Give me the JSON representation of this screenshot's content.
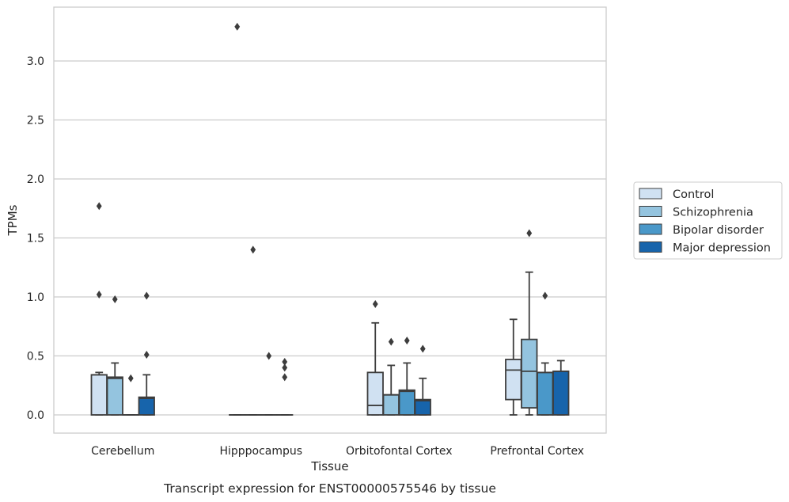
{
  "chart_data": {
    "type": "box",
    "title": "",
    "caption": "Transcript expression for ENST00000575546 by tissue",
    "xlabel": "Tissue",
    "ylabel": "TPMs",
    "ylim": [
      -0.16,
      3.45
    ],
    "yticks": [
      0.0,
      0.5,
      1.0,
      1.5,
      2.0,
      2.5,
      3.0
    ],
    "ytick_labels": [
      "0.0",
      "0.5",
      "1.0",
      "1.5",
      "2.0",
      "2.5",
      "3.0"
    ],
    "grid": "horizontal",
    "legend_placement": "right",
    "categories": [
      "Cerebellum",
      "Hipppocampus",
      "Orbitofontal Cortex",
      "Prefrontal Cortex"
    ],
    "series": [
      {
        "name": "Control",
        "color": "#d0e1f2",
        "boxes": [
          {
            "whislo": 0.0,
            "q1": 0.0,
            "med": 0.34,
            "q3": 0.34,
            "whishi": 0.36,
            "fliers": [
              1.77,
              1.02
            ]
          },
          {
            "whislo": 0.0,
            "q1": 0.0,
            "med": 0.0,
            "q3": 0.0,
            "whishi": 0.0,
            "fliers": [
              3.29
            ]
          },
          {
            "whislo": 0.0,
            "q1": 0.0,
            "med": 0.08,
            "q3": 0.36,
            "whishi": 0.78,
            "fliers": [
              0.94
            ]
          },
          {
            "whislo": 0.0,
            "q1": 0.13,
            "med": 0.38,
            "q3": 0.47,
            "whishi": 0.81,
            "fliers": []
          }
        ]
      },
      {
        "name": "Schizophrenia",
        "color": "#94c4df",
        "boxes": [
          {
            "whislo": 0.0,
            "q1": 0.0,
            "med": 0.31,
            "q3": 0.32,
            "whishi": 0.44,
            "fliers": [
              0.98
            ]
          },
          {
            "whislo": 0.0,
            "q1": 0.0,
            "med": 0.0,
            "q3": 0.0,
            "whishi": 0.0,
            "fliers": [
              1.4
            ]
          },
          {
            "whislo": 0.0,
            "q1": 0.0,
            "med": 0.17,
            "q3": 0.17,
            "whishi": 0.42,
            "fliers": [
              0.62
            ]
          },
          {
            "whislo": 0.0,
            "q1": 0.06,
            "med": 0.37,
            "q3": 0.64,
            "whishi": 1.21,
            "fliers": [
              1.54
            ]
          }
        ]
      },
      {
        "name": "Bipolar disorder",
        "color": "#4a98c9",
        "boxes": [
          {
            "whislo": 0.0,
            "q1": 0.0,
            "med": 0.0,
            "q3": 0.0,
            "whishi": 0.0,
            "fliers": [
              0.31
            ]
          },
          {
            "whislo": 0.0,
            "q1": 0.0,
            "med": 0.0,
            "q3": 0.0,
            "whishi": 0.0,
            "fliers": [
              0.5
            ]
          },
          {
            "whislo": 0.0,
            "q1": 0.0,
            "med": 0.2,
            "q3": 0.21,
            "whishi": 0.44,
            "fliers": [
              0.63
            ]
          },
          {
            "whislo": 0.0,
            "q1": 0.0,
            "med": 0.36,
            "q3": 0.36,
            "whishi": 0.44,
            "fliers": [
              1.01
            ]
          }
        ]
      },
      {
        "name": "Major depression",
        "color": "#1764ab",
        "boxes": [
          {
            "whislo": 0.0,
            "q1": 0.0,
            "med": 0.14,
            "q3": 0.15,
            "whishi": 0.34,
            "fliers": [
              1.01,
              0.51
            ]
          },
          {
            "whislo": 0.0,
            "q1": 0.0,
            "med": 0.0,
            "q3": 0.0,
            "whishi": 0.0,
            "fliers": [
              0.45,
              0.4,
              0.32
            ]
          },
          {
            "whislo": 0.0,
            "q1": 0.0,
            "med": 0.12,
            "q3": 0.13,
            "whishi": 0.31,
            "fliers": [
              0.56
            ]
          },
          {
            "whislo": 0.0,
            "q1": 0.0,
            "med": 0.37,
            "q3": 0.37,
            "whishi": 0.46,
            "fliers": []
          }
        ]
      }
    ],
    "colors": {
      "grid": "#cccccc",
      "frame": "#cccccc",
      "box_edge": "#3d3d3d",
      "flier": "#3d3d3d"
    }
  }
}
